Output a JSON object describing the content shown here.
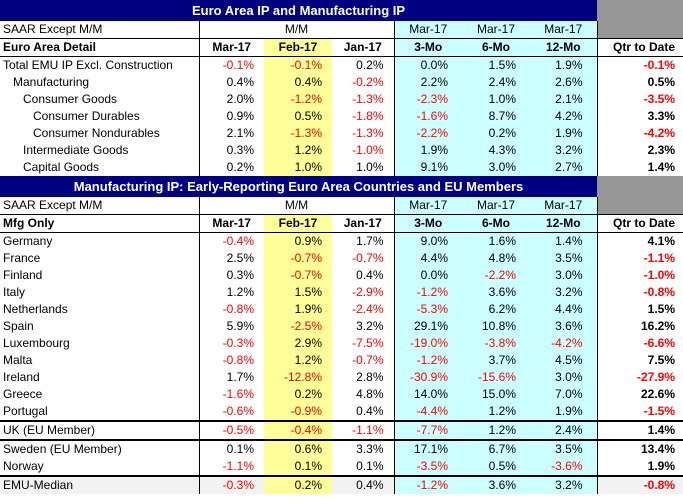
{
  "section1": {
    "title": "Euro Area IP and Manufacturing IP",
    "label_row": [
      "SAAR Except M/M",
      "M/M",
      "",
      "",
      "Mar-17",
      "Mar-17",
      "Mar-17",
      ""
    ],
    "header": [
      "Euro Area Detail",
      "Mar-17",
      "Feb-17",
      "Jan-17",
      "3-Mo",
      "6-Mo",
      "12-Mo",
      "Qtr to Date"
    ],
    "rows": [
      {
        "label": "Total EMU IP Excl. Construction",
        "indent": 0,
        "vals": [
          "-0.1%",
          "-0.1%",
          "0.2%",
          "0.0%",
          "1.5%",
          "1.9%",
          "-0.1%"
        ]
      },
      {
        "label": "Manufacturing",
        "indent": 1,
        "vals": [
          "0.4%",
          "0.4%",
          "-0.2%",
          "2.2%",
          "2.4%",
          "2.6%",
          "0.5%"
        ]
      },
      {
        "label": "Consumer Goods",
        "indent": 2,
        "vals": [
          "2.0%",
          "-1.2%",
          "-1.3%",
          "-2.3%",
          "1.0%",
          "2.1%",
          "-3.5%"
        ]
      },
      {
        "label": "Consumer Durables",
        "indent": 3,
        "vals": [
          "0.9%",
          "0.5%",
          "-1.8%",
          "-1.6%",
          "8.7%",
          "4.2%",
          "3.3%"
        ]
      },
      {
        "label": "Consumer Nondurables",
        "indent": 3,
        "vals": [
          "2.1%",
          "-1.3%",
          "-1.3%",
          "-2.2%",
          "0.2%",
          "1.9%",
          "-4.2%"
        ]
      },
      {
        "label": "Intermediate Goods",
        "indent": 2,
        "vals": [
          "0.3%",
          "1.2%",
          "-1.0%",
          "1.9%",
          "4.3%",
          "3.2%",
          "2.3%"
        ]
      },
      {
        "label": "Capital Goods",
        "indent": 2,
        "vals": [
          "0.2%",
          "1.0%",
          "1.0%",
          "9.1%",
          "3.0%",
          "2.7%",
          "1.4%"
        ]
      }
    ]
  },
  "section2": {
    "title": "Manufacturing IP: Early-Reporting Euro Area Countries and EU Members",
    "label_row": [
      "SAAR Except M/M",
      "M/M",
      "",
      "",
      "Mar-17",
      "Mar-17",
      "Mar-17",
      ""
    ],
    "header": [
      "Mfg Only",
      "Mar-17",
      "Feb-17",
      "Jan-17",
      "3-Mo",
      "6-Mo",
      "12-Mo",
      "Qtr to Date"
    ],
    "rows": [
      {
        "label": "Germany",
        "vals": [
          "-0.4%",
          "0.9%",
          "1.7%",
          "9.0%",
          "1.6%",
          "1.4%",
          "4.1%"
        ]
      },
      {
        "label": "France",
        "vals": [
          "2.5%",
          "-0.7%",
          "-0.7%",
          "4.4%",
          "4.8%",
          "3.5%",
          "-1.1%"
        ]
      },
      {
        "label": "Finland",
        "vals": [
          "0.3%",
          "-0.7%",
          "0.4%",
          "0.0%",
          "-2.2%",
          "3.0%",
          "-1.0%"
        ]
      },
      {
        "label": "Italy",
        "vals": [
          "1.2%",
          "1.5%",
          "-2.9%",
          "-1.2%",
          "3.6%",
          "3.2%",
          "-0.8%"
        ]
      },
      {
        "label": "Netherlands",
        "vals": [
          "-0.8%",
          "1.9%",
          "-2.4%",
          "-5.3%",
          "6.2%",
          "4.4%",
          "1.5%"
        ]
      },
      {
        "label": "Spain",
        "vals": [
          "5.9%",
          "-2.5%",
          "3.2%",
          "29.1%",
          "10.8%",
          "3.6%",
          "16.2%"
        ]
      },
      {
        "label": "Luxembourg",
        "vals": [
          "-0.3%",
          "2.9%",
          "-7.5%",
          "-19.0%",
          "-3.8%",
          "-4.2%",
          "-6.6%"
        ]
      },
      {
        "label": "Malta",
        "vals": [
          "-0.8%",
          "1.2%",
          "-0.7%",
          "-1.2%",
          "3.7%",
          "4.5%",
          "7.5%"
        ]
      },
      {
        "label": "Ireland",
        "vals": [
          "1.7%",
          "-12.8%",
          "2.8%",
          "-30.9%",
          "-15.6%",
          "3.0%",
          "-27.9%"
        ]
      },
      {
        "label": "Greece",
        "vals": [
          "-1.6%",
          "0.2%",
          "4.8%",
          "14.0%",
          "15.0%",
          "7.0%",
          "22.6%"
        ]
      },
      {
        "label": "Portugal",
        "vals": [
          "-0.6%",
          "-0.9%",
          "0.4%",
          "-4.4%",
          "1.2%",
          "1.9%",
          "-1.5%"
        ]
      }
    ],
    "uk_row": {
      "label": "UK (EU Member)",
      "vals": [
        "-0.5%",
        "-0.4%",
        "-1.1%",
        "-7.7%",
        "1.2%",
        "2.4%",
        "1.4%"
      ]
    },
    "eu_rows": [
      {
        "label": "Sweden (EU Member)",
        "vals": [
          "0.1%",
          "0.6%",
          "3.3%",
          "17.1%",
          "6.7%",
          "3.5%",
          "13.4%"
        ]
      },
      {
        "label": "Norway",
        "vals": [
          "-1.1%",
          "0.1%",
          "0.1%",
          "-3.5%",
          "0.5%",
          "-3.6%",
          "1.9%"
        ]
      }
    ],
    "median_row": {
      "label": "EMU-Median",
      "vals": [
        "-0.3%",
        "0.2%",
        "0.4%",
        "-1.2%",
        "3.6%",
        "3.2%",
        "-0.8%"
      ]
    }
  },
  "colors": {
    "title_bg": "#000080",
    "cyan": "#ccffff",
    "yellow": "#ffff99",
    "gray": "#969696",
    "negative": "#ff0000"
  }
}
